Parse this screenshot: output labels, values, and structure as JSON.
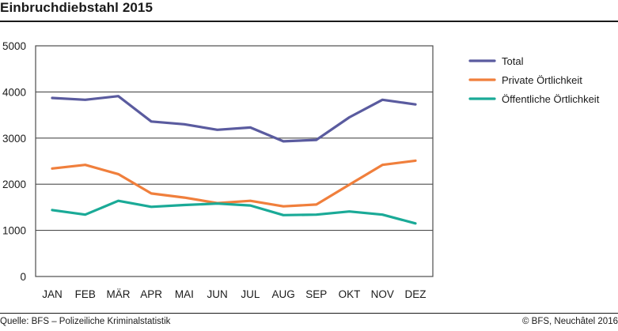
{
  "header": {
    "title": "Einbruchdiebstahl 2015"
  },
  "footer": {
    "source": "Quelle: BFS – Polizeiliche Kriminalstatistik",
    "copyright": "© BFS, Neuchâtel 2016"
  },
  "chart_data": {
    "type": "line",
    "title": "Einbruchdiebstahl 2015",
    "xlabel": "",
    "ylabel": "",
    "categories": [
      "JAN",
      "FEB",
      "MÄR",
      "APR",
      "MAI",
      "JUN",
      "JUL",
      "AUG",
      "SEP",
      "OKT",
      "NOV",
      "DEZ"
    ],
    "ylim": [
      0,
      5000
    ],
    "yticks": [
      0,
      1000,
      2000,
      3000,
      4000,
      5000
    ],
    "ytick_labels": [
      "0",
      "1000",
      "2000",
      "3000",
      "4000",
      "5000"
    ],
    "grid": "horizontal",
    "legend_position": "right",
    "series": [
      {
        "name": "Total",
        "color": "#5a5b9f",
        "values": [
          3870,
          3830,
          3910,
          3360,
          3300,
          3180,
          3230,
          2930,
          2960,
          3450,
          3830,
          3730
        ]
      },
      {
        "name": "Private Örtlichkeit",
        "color": "#f07f3c",
        "values": [
          2340,
          2420,
          2220,
          1800,
          1710,
          1590,
          1640,
          1520,
          1560,
          1990,
          2420,
          2510
        ]
      },
      {
        "name": "Öffentliche Örtlichkeit",
        "color": "#1aaa97",
        "values": [
          1440,
          1340,
          1640,
          1510,
          1550,
          1580,
          1540,
          1330,
          1340,
          1410,
          1340,
          1150
        ]
      }
    ]
  }
}
